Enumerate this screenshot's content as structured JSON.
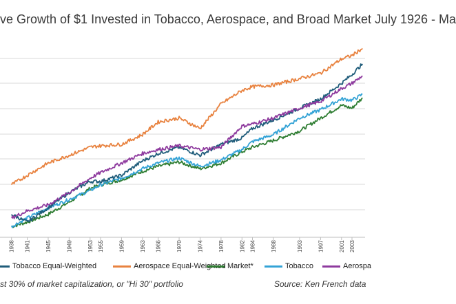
{
  "title_visible": "ve Growth of $1 Invested in Tobacco, Aerospace, and Broad Market July 1926 - Ma",
  "footnote": "st 30% of market capitalization, or \"Hi 30\" portfolio",
  "source": "Source:  Ken French data",
  "legend": [
    {
      "label": "Tobacco Equal-Weighted",
      "color": "#1f5c7a"
    },
    {
      "label": "Aerospace Equal-Weighted",
      "color": "#e8823f"
    },
    {
      "label": "Market*",
      "color": "#2e7d32"
    },
    {
      "label": "Tobacco",
      "color": "#34a3d6"
    },
    {
      "label": "Aerospa",
      "color": "#8e3a9e"
    }
  ],
  "chart_data": {
    "type": "line",
    "title": "ve Growth of $1 Invested in Tobacco, Aerospace, and Broad Market July 1926 - Ma",
    "x_tick_labels": [
      "1938",
      "1941",
      "1945",
      "1949",
      "1953",
      "1955",
      "1959",
      "1963",
      "1966",
      "1970",
      "1974",
      "1978",
      "1982",
      "1984",
      "1988",
      "1993",
      "1997",
      "2001",
      "2003"
    ],
    "y_scale": "log",
    "grid": true,
    "legend_position": "bottom",
    "series": [
      {
        "name": "Tobacco Equal-Weighted",
        "color": "#1f5c7a",
        "x": [
          1938,
          1941,
          1945,
          1949,
          1953,
          1955,
          1959,
          1963,
          1966,
          1970,
          1974,
          1978,
          1982,
          1984,
          1988,
          1993,
          1997,
          2001,
          2003,
          2005
        ],
        "y": [
          0.12,
          0.1,
          0.14,
          0.2,
          0.26,
          0.26,
          0.3,
          0.42,
          0.5,
          0.58,
          0.48,
          0.62,
          0.72,
          0.9,
          1.1,
          1.45,
          1.8,
          2.6,
          3.2,
          4.1
        ]
      },
      {
        "name": "Aerospace Equal-Weighted",
        "color": "#e8823f",
        "x": [
          1938,
          1941,
          1945,
          1949,
          1953,
          1955,
          1959,
          1963,
          1966,
          1970,
          1974,
          1978,
          1982,
          1984,
          1988,
          1993,
          1997,
          2001,
          2003,
          2005
        ],
        "y": [
          0.24,
          0.3,
          0.4,
          0.48,
          0.58,
          0.6,
          0.62,
          0.78,
          1.05,
          1.15,
          0.9,
          1.6,
          2.2,
          2.4,
          2.5,
          2.9,
          3.3,
          4.6,
          5.0,
          5.9
        ]
      },
      {
        "name": "Market*",
        "color": "#2e7d32",
        "x": [
          1938,
          1941,
          1945,
          1949,
          1953,
          1955,
          1959,
          1963,
          1966,
          1970,
          1974,
          1978,
          1982,
          1984,
          1988,
          1993,
          1997,
          2001,
          2003,
          2005
        ],
        "y": [
          0.09,
          0.1,
          0.12,
          0.16,
          0.22,
          0.24,
          0.27,
          0.33,
          0.37,
          0.41,
          0.35,
          0.4,
          0.52,
          0.58,
          0.68,
          0.85,
          1.15,
          1.55,
          1.45,
          1.85
        ]
      },
      {
        "name": "Tobacco",
        "color": "#34a3d6",
        "x": [
          1938,
          1941,
          1945,
          1949,
          1953,
          1955,
          1959,
          1963,
          1966,
          1970,
          1974,
          1978,
          1982,
          1984,
          1988,
          1993,
          1997,
          2001,
          2003,
          2005
        ],
        "y": [
          0.09,
          0.11,
          0.14,
          0.17,
          0.21,
          0.24,
          0.28,
          0.35,
          0.4,
          0.45,
          0.37,
          0.43,
          0.55,
          0.66,
          0.78,
          1.15,
          1.4,
          1.8,
          1.75,
          2.0
        ]
      },
      {
        "name": "Aerospa",
        "color": "#8e3a9e",
        "x": [
          1938,
          1941,
          1945,
          1949,
          1953,
          1955,
          1959,
          1963,
          1966,
          1970,
          1974,
          1978,
          1982,
          1984,
          1988,
          1993,
          1997,
          2001,
          2003,
          2005
        ],
        "y": [
          0.11,
          0.13,
          0.15,
          0.2,
          0.28,
          0.32,
          0.4,
          0.5,
          0.55,
          0.6,
          0.55,
          0.58,
          0.95,
          1.0,
          1.15,
          1.45,
          1.7,
          2.3,
          2.6,
          3.1
        ]
      }
    ]
  }
}
